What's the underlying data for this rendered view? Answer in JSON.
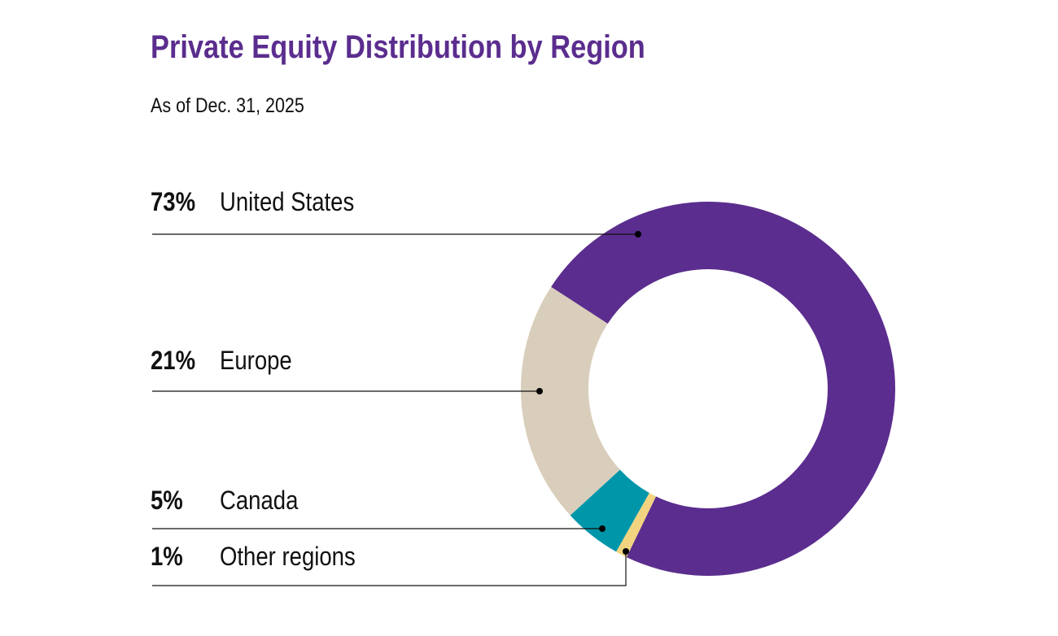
{
  "chart_data": {
    "type": "pie",
    "donut": true,
    "title": "Private Equity Distribution by Region",
    "subtitle": "As of Dec. 31, 2025",
    "slices": [
      {
        "label": "United States",
        "value": 73,
        "value_label": "73%",
        "color": "#5b2d8e"
      },
      {
        "label": "Other regions",
        "value": 1,
        "value_label": "1%",
        "color": "#f2d480"
      },
      {
        "label": "Canada",
        "value": 5,
        "value_label": "5%",
        "color": "#0096aa"
      },
      {
        "label": "Europe",
        "value": 21,
        "value_label": "21%",
        "color": "#d9cebb"
      }
    ]
  }
}
